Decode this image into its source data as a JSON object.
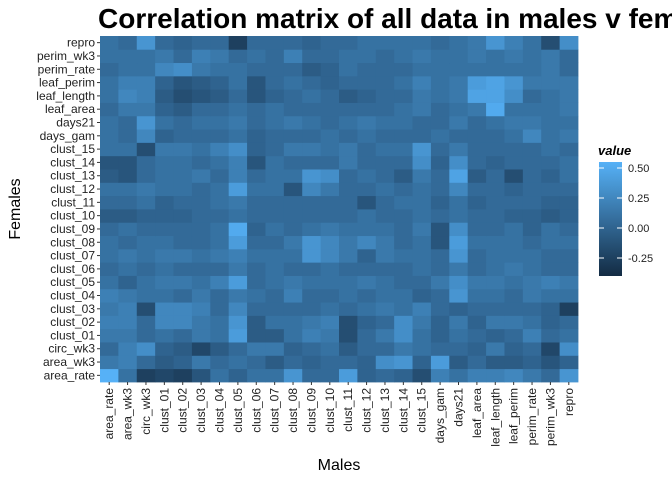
{
  "chart_data": {
    "type": "heatmap",
    "title": "Correlation matrix of all data in males v femle",
    "xlabel": "Males",
    "ylabel": "Females",
    "x_categories": [
      "area_rate",
      "area_wk3",
      "circ_wk3",
      "clust_01",
      "clust_02",
      "clust_03",
      "clust_04",
      "clust_05",
      "clust_06",
      "clust_07",
      "clust_08",
      "clust_09",
      "clust_10",
      "clust_11",
      "clust_12",
      "clust_13",
      "clust_14",
      "clust_15",
      "days_gam",
      "days21",
      "leaf_area",
      "leaf_length",
      "leaf_perim",
      "perim_rate",
      "perim_wk3",
      "repro"
    ],
    "y_categories": [
      "area_rate",
      "area_wk3",
      "circ_wk3",
      "clust_01",
      "clust_02",
      "clust_03",
      "clust_04",
      "clust_05",
      "clust_06",
      "clust_07",
      "clust_08",
      "clust_09",
      "clust_10",
      "clust_11",
      "clust_12",
      "clust_13",
      "clust_14",
      "clust_15",
      "days_gam",
      "days21",
      "leaf_area",
      "leaf_length",
      "leaf_perim",
      "perim_rate",
      "perim_wk3",
      "repro"
    ],
    "values": [
      [
        0.55,
        0.1,
        -0.25,
        -0.2,
        -0.25,
        -0.1,
        0.1,
        0.0,
        0.1,
        0.1,
        0.35,
        0.05,
        0.05,
        0.4,
        0.0,
        0.05,
        0.0,
        -0.15,
        0.2,
        0.1,
        0.2,
        0.2,
        0.25,
        0.15,
        0.05,
        0.35
      ],
      [
        0.15,
        0.2,
        0.05,
        -0.05,
        0.0,
        0.15,
        0.05,
        0.1,
        0.05,
        -0.05,
        0.05,
        0.0,
        0.05,
        0.05,
        0.0,
        0.3,
        0.35,
        0.0,
        0.4,
        -0.05,
        0.05,
        -0.05,
        -0.05,
        0.0,
        -0.1,
        0.0
      ],
      [
        0.05,
        0.2,
        0.3,
        0.0,
        -0.05,
        -0.2,
        -0.05,
        0.05,
        0.15,
        0.15,
        0.0,
        0.05,
        0.1,
        -0.05,
        0.05,
        0.05,
        0.15,
        0.1,
        0.05,
        0.05,
        0.0,
        0.15,
        0.0,
        0.05,
        -0.2,
        0.3
      ],
      [
        0.15,
        0.15,
        0.05,
        0.1,
        0.05,
        0.15,
        0.1,
        0.4,
        -0.05,
        -0.05,
        0.1,
        0.2,
        0.15,
        -0.15,
        0.05,
        0.15,
        0.3,
        0.1,
        0.0,
        0.1,
        0.05,
        0.0,
        0.05,
        0.2,
        0.05,
        0.1
      ],
      [
        0.2,
        0.2,
        0.05,
        0.25,
        0.25,
        0.15,
        0.1,
        0.35,
        -0.05,
        0.1,
        0.1,
        0.15,
        0.2,
        -0.15,
        0.0,
        0.05,
        0.3,
        0.15,
        0.0,
        0.15,
        0.0,
        0.15,
        0.15,
        0.1,
        0.0,
        0.05
      ],
      [
        0.15,
        0.2,
        -0.15,
        0.25,
        0.25,
        0.2,
        0.05,
        0.25,
        0.05,
        0.05,
        0.05,
        0.05,
        0.1,
        0.05,
        0.1,
        0.15,
        0.1,
        0.2,
        0.05,
        0.0,
        0.05,
        0.05,
        0.05,
        0.05,
        0.0,
        -0.25
      ],
      [
        0.2,
        0.15,
        0.1,
        0.1,
        0.05,
        0.15,
        0.05,
        0.15,
        0.1,
        0.05,
        0.2,
        0.05,
        0.05,
        0.1,
        0.05,
        0.1,
        0.1,
        0.0,
        0.05,
        0.35,
        0.1,
        0.1,
        0.05,
        0.15,
        0.1,
        0.1
      ],
      [
        0.1,
        0.0,
        0.1,
        0.15,
        0.15,
        0.1,
        0.2,
        0.4,
        0.05,
        0.1,
        0.15,
        0.1,
        0.1,
        0.1,
        0.15,
        0.1,
        0.05,
        0.05,
        0.15,
        0.3,
        0.15,
        0.15,
        0.1,
        0.15,
        0.2,
        0.15
      ],
      [
        0.05,
        0.1,
        0.05,
        0.1,
        0.05,
        0.05,
        0.05,
        0.15,
        0.05,
        0.1,
        0.05,
        0.05,
        0.1,
        0.05,
        0.05,
        0.05,
        0.05,
        0.1,
        0.05,
        0.15,
        0.05,
        0.1,
        0.15,
        0.1,
        0.05,
        0.05
      ],
      [
        0.1,
        0.15,
        0.1,
        0.15,
        0.15,
        0.1,
        0.15,
        0.2,
        0.1,
        0.1,
        0.1,
        0.35,
        0.25,
        0.15,
        0.0,
        0.15,
        0.1,
        0.1,
        0.05,
        0.35,
        0.05,
        0.1,
        0.1,
        0.1,
        0.05,
        0.05
      ],
      [
        0.1,
        0.05,
        0.1,
        0.1,
        0.05,
        0.05,
        0.1,
        0.4,
        0.05,
        0.05,
        0.15,
        0.35,
        0.25,
        0.15,
        0.25,
        0.15,
        0.05,
        0.1,
        -0.1,
        0.4,
        0.1,
        0.1,
        0.1,
        0.05,
        0.1,
        0.1
      ],
      [
        0.05,
        0.1,
        0.05,
        0.05,
        0.05,
        0.05,
        0.1,
        0.5,
        0.0,
        0.1,
        0.05,
        0.1,
        0.15,
        0.1,
        0.1,
        0.1,
        0.05,
        0.15,
        -0.1,
        0.3,
        0.05,
        0.05,
        0.1,
        0.0,
        0.1,
        0.05
      ],
      [
        -0.05,
        -0.05,
        0.0,
        0.0,
        0.0,
        0.05,
        0.05,
        0.1,
        0.05,
        0.05,
        0.05,
        0.05,
        0.05,
        0.05,
        0.1,
        0.05,
        0.05,
        0.1,
        0.05,
        0.1,
        0.05,
        0.05,
        0.0,
        0.0,
        -0.05,
        0.0
      ],
      [
        0.05,
        0.05,
        0.1,
        0.0,
        0.05,
        0.05,
        0.1,
        0.15,
        0.05,
        0.05,
        0.05,
        0.05,
        0.05,
        0.05,
        -0.1,
        0.05,
        0.1,
        0.1,
        0.0,
        0.1,
        0.0,
        0.05,
        0.05,
        0.05,
        0.0,
        0.0
      ],
      [
        0.1,
        0.1,
        0.15,
        0.1,
        0.1,
        0.05,
        0.1,
        0.4,
        0.1,
        0.1,
        -0.1,
        0.25,
        0.15,
        0.05,
        0.05,
        0.1,
        0.05,
        0.1,
        0.05,
        0.25,
        0.05,
        0.05,
        0.0,
        0.05,
        0.05,
        0.05
      ],
      [
        -0.05,
        -0.1,
        0.05,
        0.1,
        0.1,
        0.15,
        0.05,
        0.2,
        0.05,
        0.1,
        0.1,
        0.35,
        0.3,
        0.05,
        0.1,
        0.05,
        -0.05,
        0.15,
        0.05,
        0.45,
        -0.05,
        0.05,
        -0.15,
        0.05,
        0.0,
        0.1
      ],
      [
        -0.1,
        -0.1,
        0.05,
        0.1,
        0.1,
        0.05,
        0.1,
        0.2,
        -0.1,
        0.1,
        0.05,
        0.05,
        0.05,
        0.15,
        0.05,
        0.05,
        0.05,
        0.3,
        0.0,
        0.3,
        0.05,
        0.0,
        0.05,
        0.05,
        0.05,
        0.1
      ],
      [
        0.1,
        0.1,
        -0.15,
        0.15,
        0.15,
        0.1,
        0.2,
        0.3,
        0.0,
        0.05,
        0.15,
        0.15,
        0.1,
        0.15,
        0.05,
        0.1,
        0.1,
        0.35,
        0.05,
        0.15,
        0.05,
        0.05,
        0.05,
        0.05,
        0.1,
        0.05
      ],
      [
        0.1,
        0.05,
        0.25,
        0.0,
        0.05,
        0.05,
        0.05,
        0.1,
        0.0,
        0.05,
        0.05,
        0.05,
        0.1,
        0.05,
        0.1,
        0.05,
        0.05,
        0.05,
        0.1,
        0.05,
        0.05,
        0.05,
        0.1,
        0.25,
        0.1,
        0.15
      ],
      [
        0.1,
        0.05,
        0.35,
        0.1,
        0.05,
        0.1,
        0.1,
        0.15,
        0.05,
        0.1,
        0.15,
        0.1,
        0.05,
        0.1,
        0.15,
        0.1,
        0.1,
        0.05,
        0.05,
        0.15,
        0.05,
        0.1,
        0.15,
        0.15,
        0.1,
        0.1
      ],
      [
        0.05,
        0.15,
        0.15,
        0.0,
        -0.05,
        0.05,
        0.05,
        0.1,
        0.05,
        0.1,
        0.05,
        0.05,
        0.05,
        0.05,
        0.05,
        0.05,
        0.1,
        0.15,
        0.05,
        0.1,
        0.15,
        0.5,
        0.1,
        0.1,
        0.1,
        0.15
      ],
      [
        0.1,
        0.25,
        0.2,
        -0.05,
        -0.15,
        -0.1,
        -0.05,
        0.05,
        -0.1,
        0.0,
        0.05,
        0.1,
        0.05,
        -0.05,
        0.0,
        0.05,
        0.05,
        0.15,
        0.1,
        0.15,
        0.45,
        0.45,
        0.3,
        0.05,
        0.1,
        0.15
      ],
      [
        0.1,
        0.2,
        0.2,
        0.0,
        -0.1,
        -0.05,
        0.0,
        0.1,
        -0.1,
        0.05,
        0.1,
        0.05,
        0.0,
        0.05,
        0.05,
        0.05,
        0.1,
        0.2,
        0.1,
        0.15,
        0.4,
        0.45,
        0.35,
        0.15,
        0.15,
        0.15
      ],
      [
        0.05,
        0.1,
        0.1,
        0.25,
        0.3,
        0.15,
        0.1,
        0.1,
        0.05,
        0.05,
        0.05,
        -0.05,
        0.0,
        0.1,
        0.05,
        0.05,
        0.05,
        0.1,
        0.1,
        0.1,
        0.1,
        0.1,
        0.1,
        0.1,
        0.15,
        0.05
      ],
      [
        0.1,
        0.1,
        0.1,
        0.15,
        0.05,
        0.2,
        0.15,
        0.05,
        0.1,
        0.05,
        0.2,
        0.05,
        0.05,
        0.1,
        0.1,
        0.05,
        0.1,
        0.15,
        0.1,
        0.1,
        0.15,
        0.1,
        0.15,
        0.1,
        0.15,
        0.05
      ],
      [
        0.1,
        0.05,
        0.35,
        0.05,
        0.0,
        0.05,
        0.05,
        -0.25,
        0.05,
        0.05,
        0.05,
        0.0,
        0.05,
        0.05,
        0.1,
        0.1,
        0.1,
        0.1,
        0.05,
        0.1,
        0.15,
        0.35,
        0.2,
        0.1,
        -0.15,
        0.3
      ]
    ],
    "value_range": [
      -0.4,
      0.55
    ],
    "color_low": "#132B43",
    "color_high": "#56B1F7",
    "legend": {
      "title": "value",
      "position": "right",
      "breaks": [
        0.5,
        0.25,
        0.0,
        -0.25
      ],
      "labels": [
        "0.50",
        "0.25",
        "0.00",
        "-0.25"
      ]
    }
  }
}
